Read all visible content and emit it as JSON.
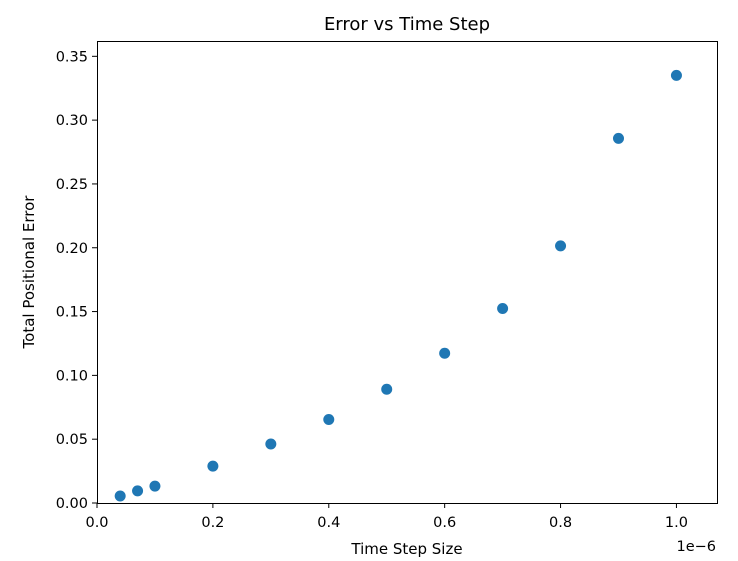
{
  "chart_data": {
    "type": "scatter",
    "title": "Error vs Time Step",
    "xlabel": "Time Step Size",
    "ylabel": "Total Positional Error",
    "x_offset_label": "1e−6",
    "xlim": [
      0.0,
      1.07
    ],
    "ylim": [
      0.0,
      0.362
    ],
    "x_ticks": [
      0.0,
      0.2,
      0.4,
      0.6,
      0.8,
      1.0
    ],
    "x_tick_labels": [
      "0.0",
      "0.2",
      "0.4",
      "0.6",
      "0.8",
      "1.0"
    ],
    "y_ticks": [
      0.0,
      0.05,
      0.1,
      0.15,
      0.2,
      0.25,
      0.3,
      0.35
    ],
    "y_tick_labels": [
      "0.00",
      "0.05",
      "0.10",
      "0.15",
      "0.20",
      "0.25",
      "0.30",
      "0.35"
    ],
    "grid": false,
    "marker_color": "#1f77b4",
    "series": [
      {
        "x": [
          0.04,
          0.07,
          0.1,
          0.2,
          0.3,
          0.4,
          0.5,
          0.6,
          0.7,
          0.8,
          0.9,
          1.0
        ],
        "y": [
          0.0055,
          0.0095,
          0.0132,
          0.0289,
          0.0462,
          0.0654,
          0.0891,
          0.1173,
          0.1524,
          0.2015,
          0.2857,
          0.3351
        ]
      }
    ]
  }
}
